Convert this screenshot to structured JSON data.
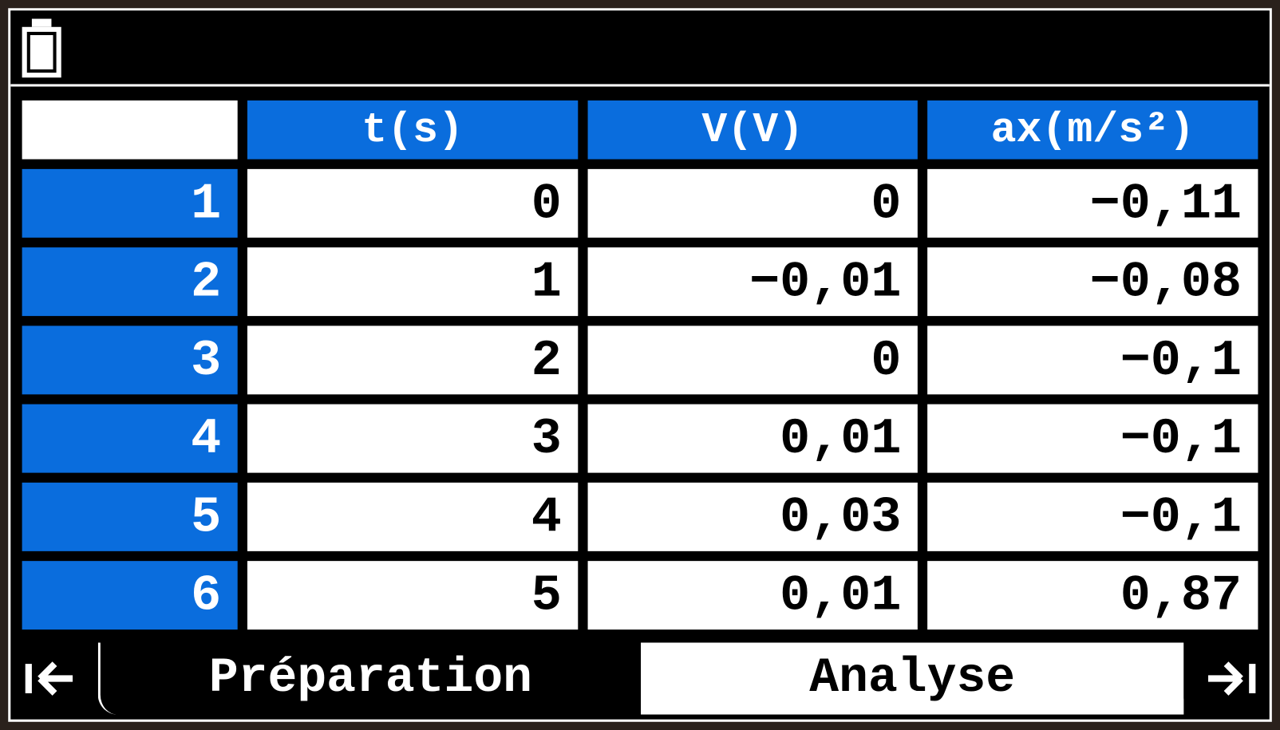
{
  "table": {
    "header": [
      "t(s)",
      "V(V)",
      "ax(m/s²)"
    ],
    "rows": [
      [
        "1",
        "0",
        "0",
        "−0,11"
      ],
      [
        "2",
        "1",
        "−0,01",
        "−0,08"
      ],
      [
        "3",
        "2",
        "0",
        "−0,1"
      ],
      [
        "4",
        "3",
        "0,01",
        "−0,1"
      ],
      [
        "5",
        "4",
        "0,03",
        "−0,1"
      ],
      [
        "6",
        "5",
        "0,01",
        "0,87"
      ]
    ]
  },
  "tabs": [
    "Préparation",
    "Analyse"
  ]
}
